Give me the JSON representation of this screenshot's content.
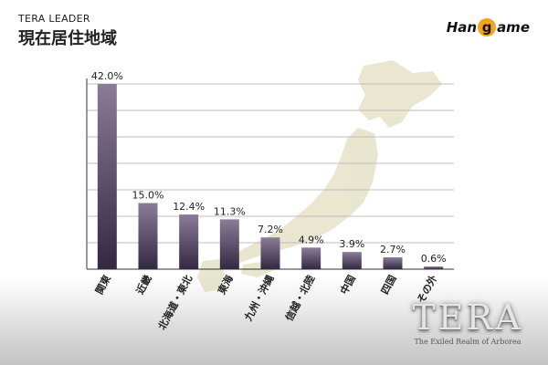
{
  "header": {
    "subtitle": "TERA LEADER",
    "title": "現在居住地域"
  },
  "brand_logo": {
    "left": "Han",
    "mid": "g",
    "right": "ame"
  },
  "game_logo": {
    "word": "TERA",
    "tagline": "The Exiled Realm of Arborea"
  },
  "colors": {
    "bar_top": "#8b7c98",
    "bar_bottom": "#332842",
    "axis": "#333333",
    "grid": "#bfbfbf",
    "map": "#d8d2a8"
  },
  "chart_data": {
    "type": "bar",
    "categories": [
      "関東",
      "近畿",
      "北海道・東北",
      "東海",
      "九州・沖縄",
      "信越・北陸",
      "中国",
      "四国",
      "その外"
    ],
    "values": [
      42.0,
      15.0,
      12.4,
      11.3,
      7.2,
      4.9,
      3.9,
      2.7,
      0.6
    ],
    "data_labels": [
      "42.0%",
      "15.0%",
      "12.4%",
      "11.3%",
      "7.2%",
      "4.9%",
      "3.9%",
      "2.7%",
      "0.6%"
    ],
    "ylim": [
      0,
      42
    ],
    "grid": true,
    "xlabel": "",
    "ylabel": ""
  }
}
